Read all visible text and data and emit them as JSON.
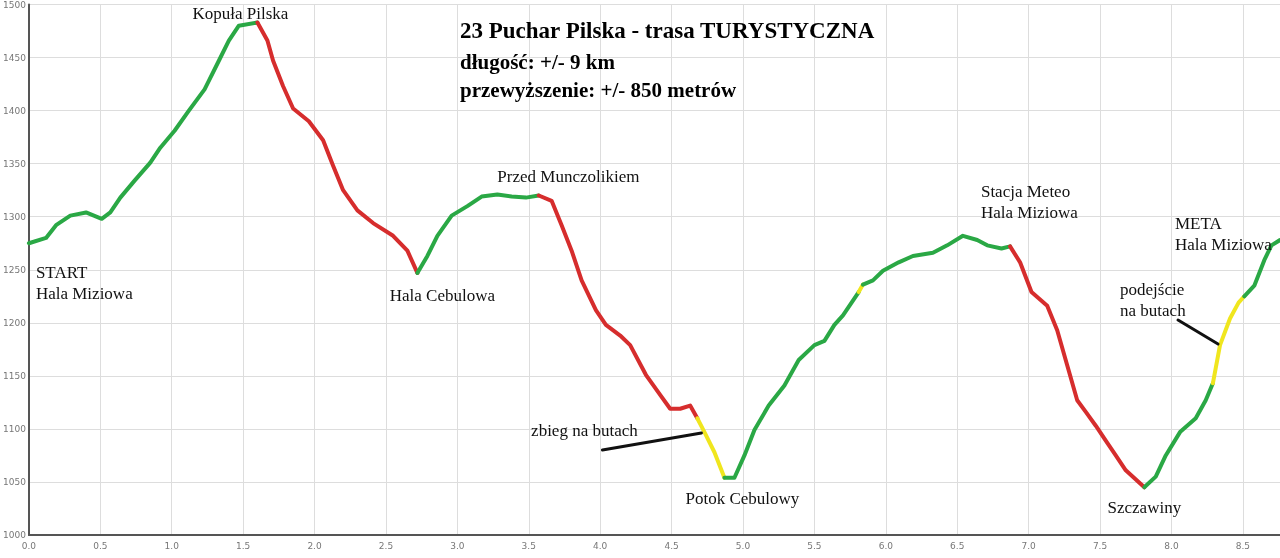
{
  "chart_data": {
    "type": "line",
    "title": "23 Puchar Pilska - trasa TURYSTYCZNA",
    "subtitle": "długość: +/- 9 km\nprzewyższenie: +/- 850 metrów",
    "xlim": [
      0,
      8.76
    ],
    "xticks": [
      {
        "value": 0,
        "label": "0.0"
      },
      0.5,
      {
        "value": 1,
        "label": "1.0"
      },
      1.5,
      {
        "value": 2,
        "label": "2.0"
      },
      2.5,
      {
        "value": 3,
        "label": "3.0"
      },
      3.5,
      {
        "value": 4,
        "label": "4.0"
      },
      4.5,
      {
        "value": 5,
        "label": "5.0"
      },
      5.5,
      {
        "value": 6,
        "label": "6.0"
      },
      6.5,
      {
        "value": 7,
        "label": "7.0"
      },
      7.5,
      {
        "value": 8,
        "label": "8.0"
      },
      8.5
    ],
    "ylim": [
      1000,
      1500
    ],
    "yticks": [
      1000,
      1050,
      1100,
      1150,
      1200,
      1250,
      1300,
      1350,
      1400,
      1450,
      1500
    ],
    "grid": true,
    "marker": "none",
    "line_style": "solid",
    "series": [
      {
        "color": "#2aa845",
        "x": [
          0,
          0.12,
          0.19,
          0.29,
          0.4,
          0.51,
          0.57,
          0.64,
          0.74,
          0.85,
          0.92,
          1.02,
          1.12,
          1.23,
          1.33,
          1.4,
          1.47,
          1.6
        ],
        "values": [
          1275,
          1280,
          1292,
          1301,
          1304,
          1298,
          1304,
          1318,
          1334,
          1351,
          1365,
          1381,
          1400,
          1420,
          1447,
          1466,
          1480,
          1483
        ]
      },
      {
        "color": "#d62d2d",
        "x": [
          1.6,
          1.67,
          1.71,
          1.78,
          1.85,
          1.96,
          2.06,
          2.13,
          2.2,
          2.3,
          2.41,
          2.55,
          2.65,
          2.72
        ],
        "values": [
          1483,
          1466,
          1447,
          1423,
          1402,
          1390,
          1372,
          1348,
          1325,
          1306,
          1294,
          1282,
          1268,
          1247
        ]
      },
      {
        "color": "#2aa845",
        "x": [
          2.72,
          2.79,
          2.86,
          2.96,
          3.07,
          3.17,
          3.28,
          3.38,
          3.48,
          3.57
        ],
        "values": [
          1247,
          1263,
          1282,
          1301,
          1310,
          1319,
          1321,
          1319,
          1318,
          1320
        ]
      },
      {
        "color": "#d62d2d",
        "x": [
          3.57,
          3.66,
          3.73,
          3.8,
          3.87,
          3.97,
          4.04,
          4.14,
          4.21,
          4.32,
          4.42,
          4.49,
          4.56,
          4.63,
          4.68
        ],
        "values": [
          1320,
          1315,
          1292,
          1268,
          1240,
          1212,
          1198,
          1188,
          1179,
          1151,
          1132,
          1119,
          1119,
          1122,
          1110
        ]
      },
      {
        "color": "#f0e61e",
        "x": [
          4.68,
          4.73,
          4.8,
          4.87
        ],
        "values": [
          1110,
          1097,
          1078,
          1054
        ]
      },
      {
        "color": "#2aa845",
        "x": [
          4.87,
          4.94,
          5.01,
          5.08,
          5.18,
          5.29,
          5.39,
          5.5,
          5.57,
          5.64,
          5.7,
          5.81
        ],
        "values": [
          1054,
          1054,
          1075,
          1099,
          1122,
          1141,
          1165,
          1179,
          1183,
          1198,
          1207,
          1229
        ]
      },
      {
        "color": "#f0e61e",
        "x": [
          5.81,
          5.84
        ],
        "values": [
          1229,
          1236
        ]
      },
      {
        "color": "#2aa845",
        "x": [
          5.84,
          5.91,
          5.98,
          6.09,
          6.19,
          6.33,
          6.43,
          6.54,
          6.64,
          6.71,
          6.81,
          6.87
        ],
        "values": [
          1236,
          1240,
          1249,
          1257,
          1263,
          1266,
          1273,
          1282,
          1278,
          1273,
          1270,
          1272
        ]
      },
      {
        "color": "#d62d2d",
        "x": [
          6.87,
          6.94,
          7.02,
          7.13,
          7.2,
          7.27,
          7.34,
          7.4,
          7.47,
          7.54,
          7.61,
          7.68,
          7.81
        ],
        "values": [
          1272,
          1257,
          1229,
          1216,
          1193,
          1160,
          1127,
          1116,
          1103,
          1089,
          1075,
          1061,
          1045
        ]
      },
      {
        "color": "#2aa845",
        "x": [
          7.81,
          7.89,
          7.96,
          8.06,
          8.17,
          8.24,
          8.29
        ],
        "values": [
          1045,
          1055,
          1075,
          1097,
          1110,
          1127,
          1143
        ]
      },
      {
        "color": "#f0e61e",
        "x": [
          8.29,
          8.34,
          8.41,
          8.47,
          8.51
        ],
        "values": [
          1143,
          1179,
          1204,
          1219,
          1225
        ]
      },
      {
        "color": "#2aa845",
        "x": [
          8.51,
          8.58,
          8.65,
          8.7,
          8.76
        ],
        "values": [
          1225,
          1235,
          1259,
          1273,
          1278
        ]
      }
    ],
    "annotations": [
      {
        "text": "Kopuła Pilska",
        "x": 1.6,
        "y": 1483
      },
      {
        "text": "START\nHala Miziowa",
        "x": 0,
        "y": 1275
      },
      {
        "text": "Hala Cebulowa",
        "x": 2.72,
        "y": 1247
      },
      {
        "text": "Przed Munczolikiem",
        "x": 3.28,
        "y": 1321
      },
      {
        "text": "Potok Cebulowy",
        "x": 4.87,
        "y": 1054
      },
      {
        "text": "Stacja Meteo\nHala Miziowa",
        "x": 6.54,
        "y": 1282
      },
      {
        "text": "Szczawiny",
        "x": 7.81,
        "y": 1045
      },
      {
        "text": "META\nHala Miziowa",
        "x": 8.76,
        "y": 1278
      },
      {
        "text": "zbieg na butach",
        "x": 4.73,
        "y": 1097
      },
      {
        "text": "podejście\nna butach",
        "x": 8.34,
        "y": 1179
      }
    ]
  }
}
